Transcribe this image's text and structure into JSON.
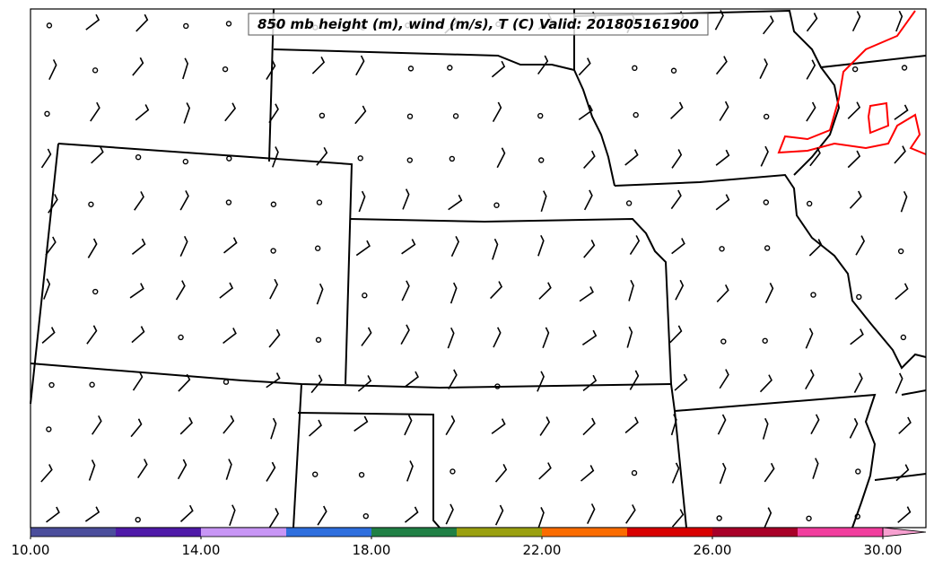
{
  "title": "850 mb height (m), wind (m/s), T (C) Valid: 201805161900",
  "colorbar": {
    "ticks": [
      "10.00",
      "14.00",
      "18.00",
      "22.00",
      "26.00",
      "30.00"
    ],
    "colors": [
      "#4b4e9c",
      "#4f1aa8",
      "#c896f5",
      "#2f6fde",
      "#208045",
      "#9aa010",
      "#fb6c00",
      "#d80000",
      "#a80028",
      "#f13e9e",
      "#f7a0d0"
    ]
  }
}
